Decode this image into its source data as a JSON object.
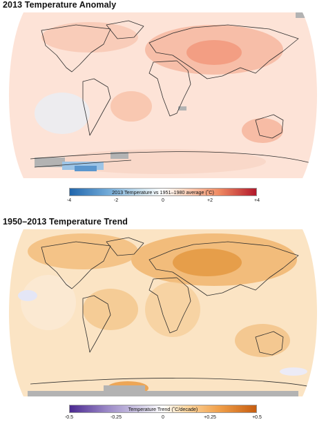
{
  "panels": [
    {
      "title": "2013 Temperature Anomaly",
      "colorbar_label": "2013 Temperature vs 1951–1980 average (˚C)",
      "ticks": [
        "-4",
        "-2",
        "0",
        "+2",
        "+4"
      ],
      "colors": {
        "ocean_fill": "#fde3d7",
        "hotspot": "#f29a7e",
        "cool_patch": "#bcd6ee",
        "no_data": "#b3b3b3",
        "coastline": "#2c2c2c"
      },
      "map_icon": "world-map-robinson"
    },
    {
      "title": "1950–2013 Temperature Trend",
      "colorbar_label": "Temperature Trend (˚C/decade)",
      "ticks": [
        "-0.5",
        "-0.25",
        "0",
        "+0.25",
        "+0.5"
      ],
      "colors": {
        "ocean_fill": "#fbe4c4",
        "hotspot": "#e49a45",
        "cool_patch": "#e4e6f6",
        "no_data": "#b3b3b3",
        "coastline": "#2c2c2c"
      },
      "map_icon": "world-map-robinson"
    }
  ]
}
